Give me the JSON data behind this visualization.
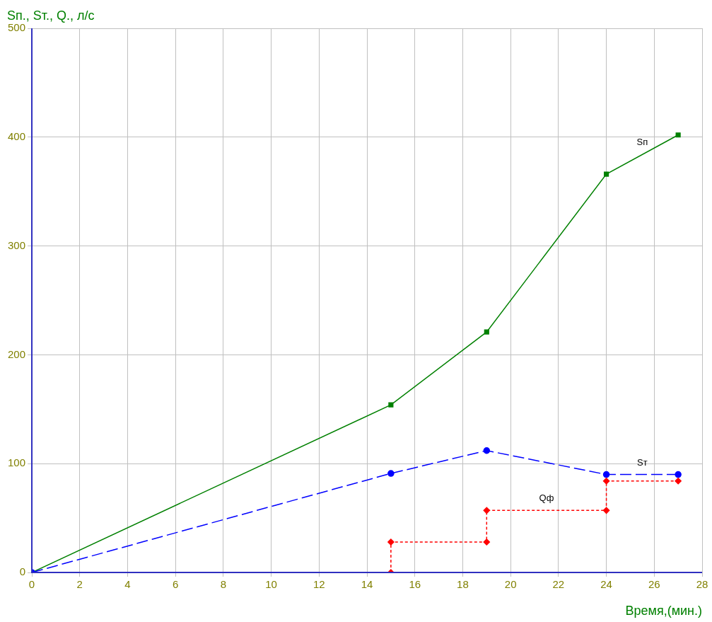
{
  "chart_data": {
    "type": "line",
    "ylabel": "Sп., Sт., Q., л/с",
    "xlabel": "Время,(мин.)",
    "xlim": [
      0,
      28
    ],
    "xticks": [
      0,
      2,
      4,
      6,
      8,
      10,
      12,
      14,
      16,
      18,
      20,
      22,
      24,
      26,
      28
    ],
    "ylim": [
      0,
      500
    ],
    "yticks": [
      0,
      100,
      200,
      300,
      400,
      500
    ],
    "grid": true,
    "legend": false,
    "series": [
      {
        "name": "Sп",
        "color": "#008000",
        "x": [
          0,
          15,
          19,
          24,
          27
        ],
        "values": [
          0,
          154,
          221,
          366,
          402
        ],
        "marker": "square",
        "line_style": "solid"
      },
      {
        "name": "Sт",
        "color": "#0000ff",
        "x": [
          0,
          15,
          19,
          24,
          27
        ],
        "values": [
          0,
          91,
          112,
          90,
          90
        ],
        "marker": "circle",
        "line_style": "dashed"
      },
      {
        "name": "Qф",
        "color": "#ff0000",
        "x": [
          15,
          15,
          19,
          19,
          24,
          24,
          27
        ],
        "values": [
          0,
          28,
          28,
          57,
          57,
          84,
          84
        ],
        "marker": "diamond",
        "line_style": "dotted"
      }
    ]
  }
}
